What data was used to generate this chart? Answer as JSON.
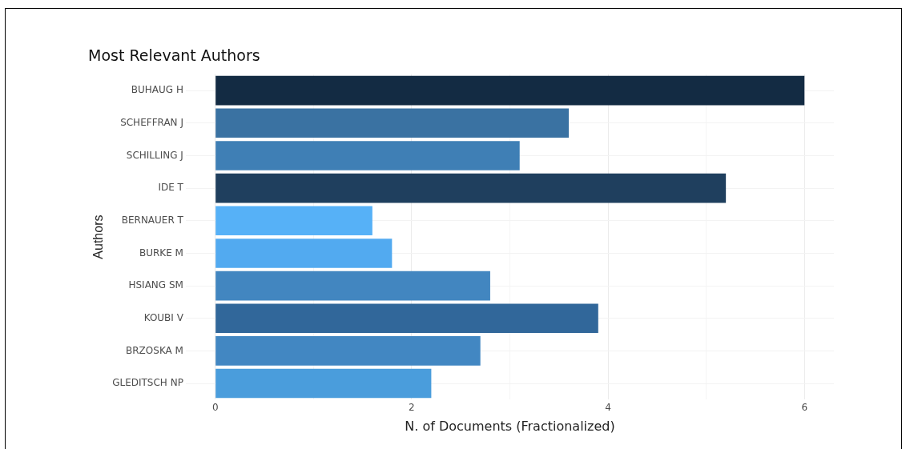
{
  "chart_data": {
    "type": "bar",
    "orientation": "horizontal",
    "title": "Most Relevant Authors",
    "xlabel": "N. of Documents (Fractionalized)",
    "ylabel": "Authors",
    "categories": [
      "BUHAUG H",
      "SCHEFFRAN J",
      "SCHILLING J",
      "IDE T",
      "BERNAUER T",
      "BURKE M",
      "HSIANG SM",
      "KOUBI V",
      "BRZOSKA M",
      "GLEDITSCH NP"
    ],
    "values": [
      6.0,
      3.6,
      3.1,
      5.2,
      1.6,
      1.8,
      2.8,
      3.9,
      2.7,
      2.2
    ],
    "colors": [
      "#132b43",
      "#3a72a2",
      "#3f7fb5",
      "#1f3f5e",
      "#56b1f7",
      "#52aaf0",
      "#4286c0",
      "#31679a",
      "#4287c2",
      "#4a9ddc"
    ],
    "xlim": [
      -0.3,
      6.3
    ],
    "xticks": [
      0,
      {
        "value": 1,
        "label": null
      },
      2,
      {
        "value": 3,
        "label": null
      },
      4,
      {
        "value": 5,
        "label": null
      },
      6
    ],
    "grid": true,
    "legend": false
  }
}
